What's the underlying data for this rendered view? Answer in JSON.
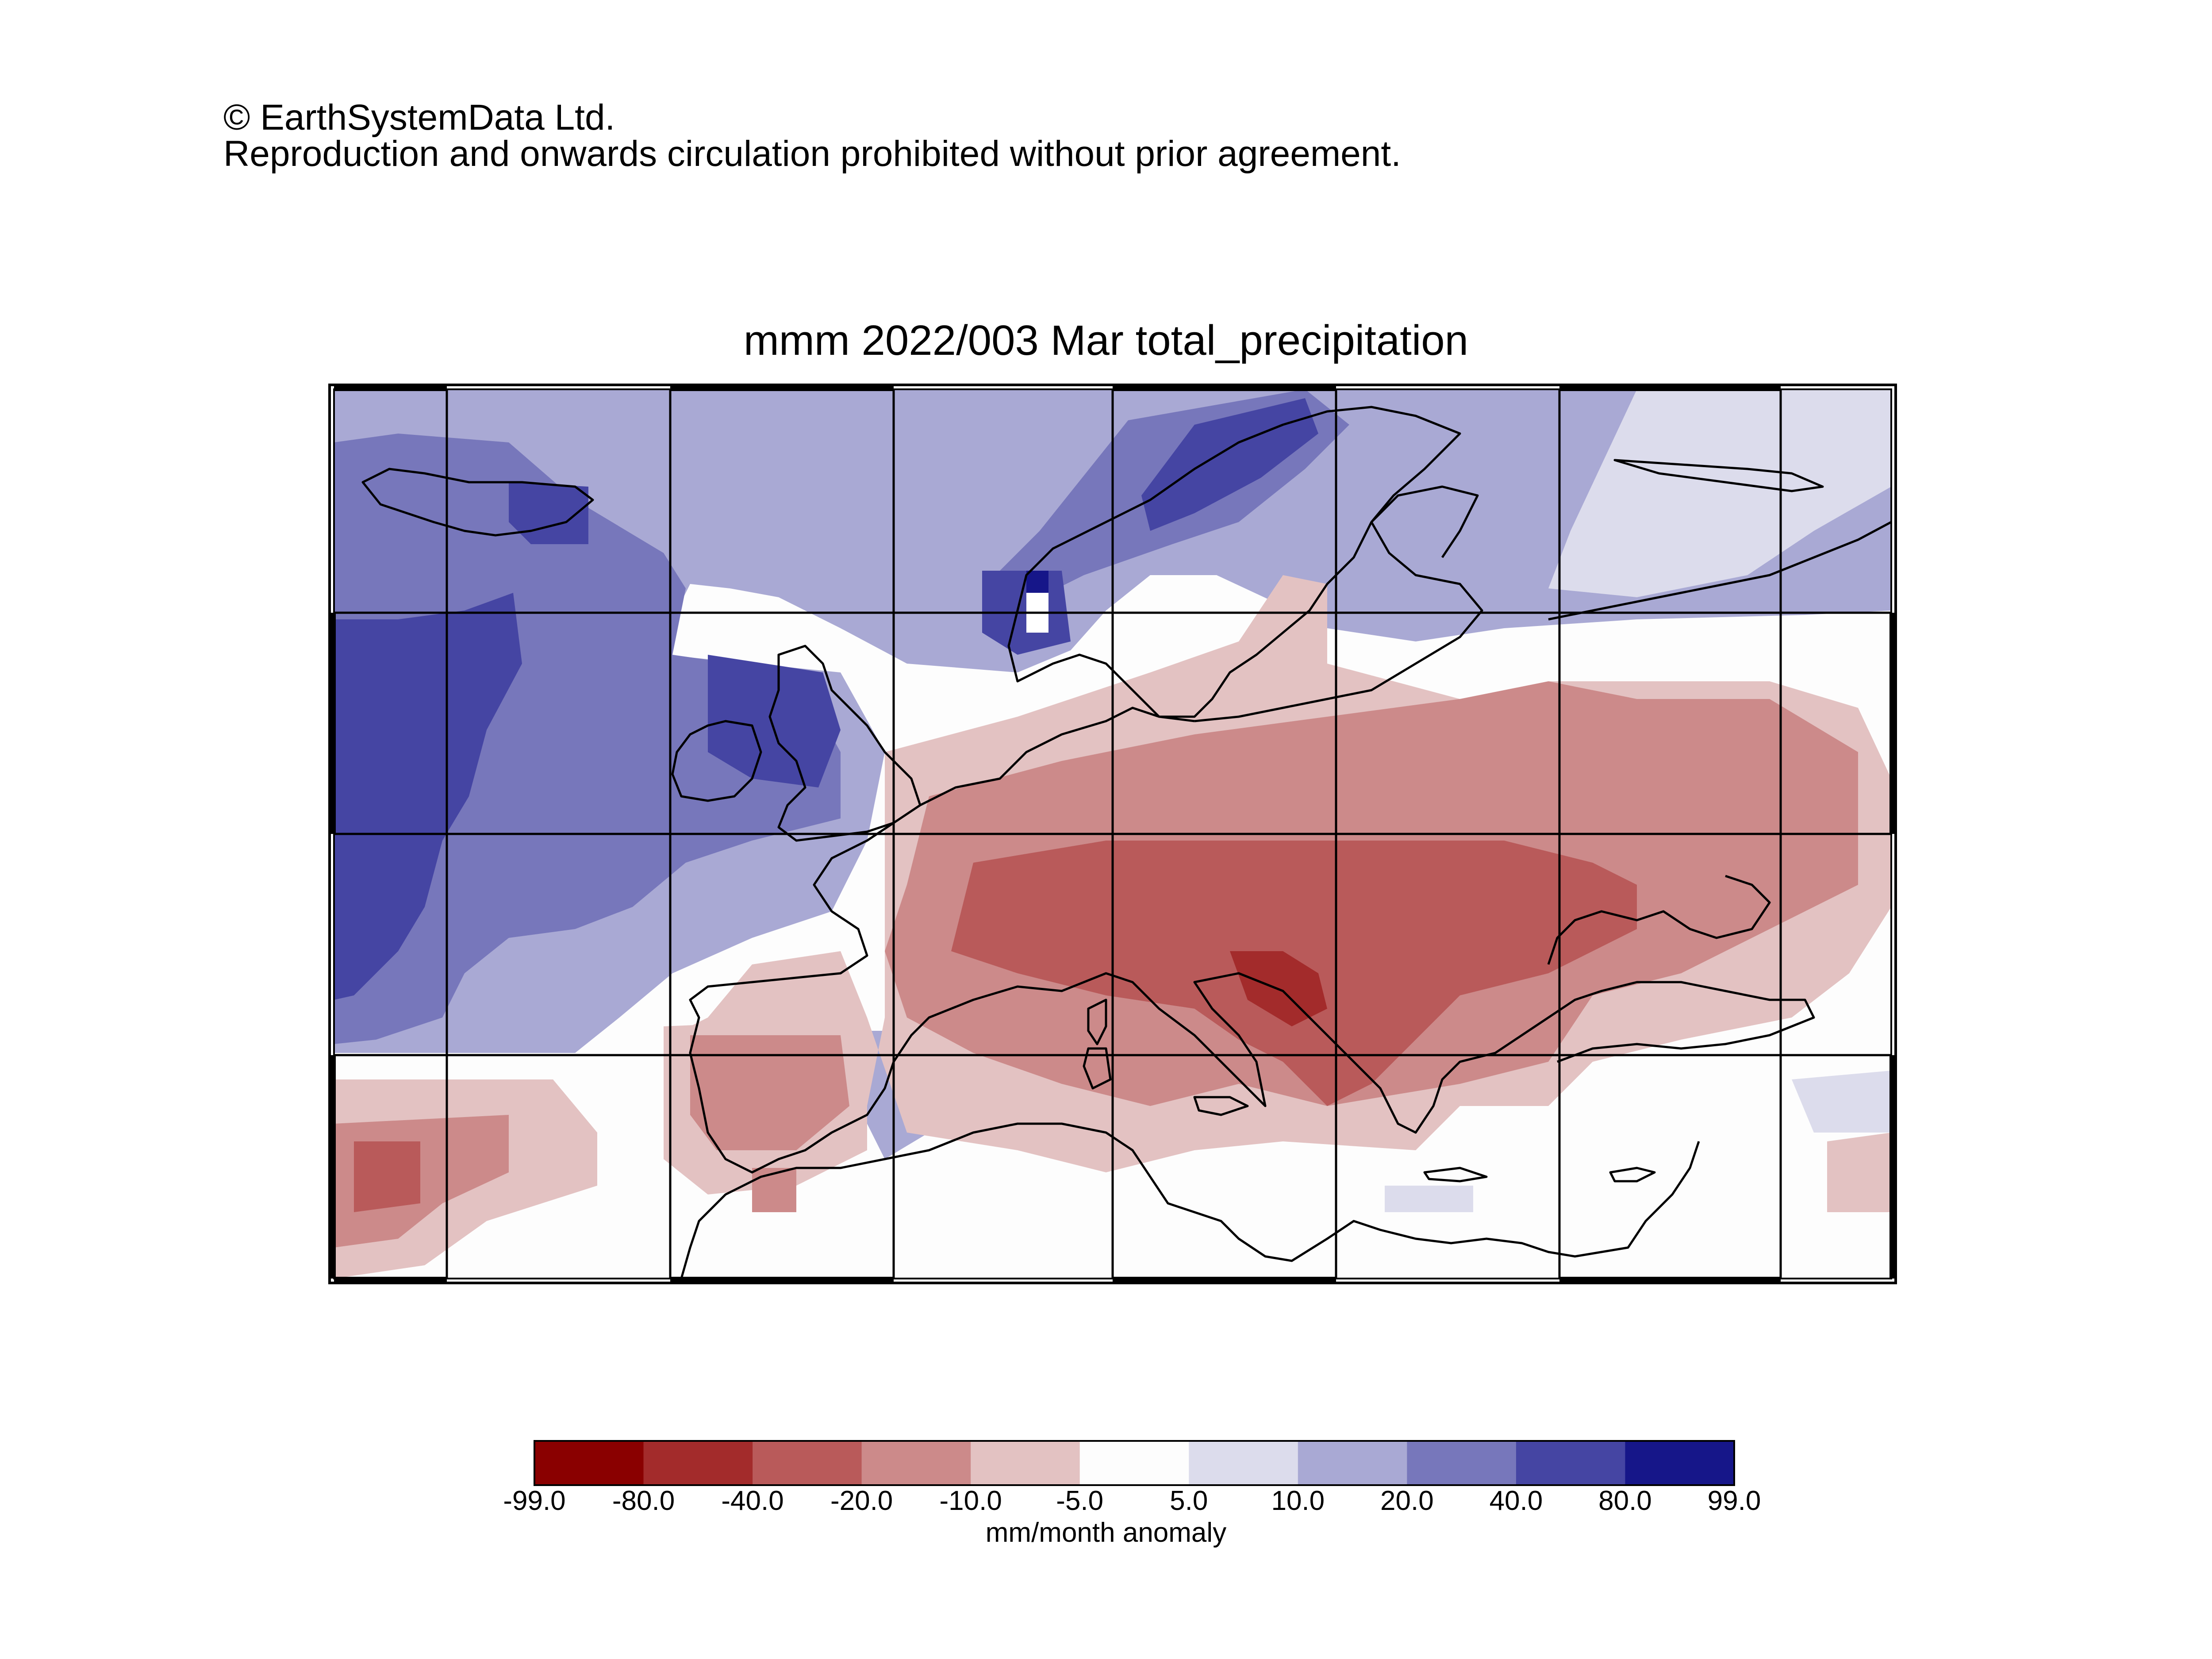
{
  "copyright": {
    "line1": "© EarthSystemData Ltd.",
    "line2": "Reproduction and onwards circulation prohibited without prior agreement."
  },
  "map": {
    "title": "mmm 2022/003 Mar total_precipitation",
    "region": "Europe / North Atlantic / Mediterranean",
    "field": "total_precipitation anomaly",
    "period": "2022 March",
    "grid_lines": true,
    "background_color": "#fdfdfd",
    "anomaly_pattern": [
      {
        "area": "North Atlantic west of Ireland",
        "class": "40.0 to 80.0"
      },
      {
        "area": "Iceland / Norwegian Sea",
        "class": "20.0 to 40.0"
      },
      {
        "area": "Western Norway coast",
        "class": "40.0 to 80.0"
      },
      {
        "area": "Ireland / Western Britain",
        "class": "20.0 to 40.0"
      },
      {
        "area": "Northern Russia / Barents",
        "class": "10.0 to 20.0"
      },
      {
        "area": "Central Europe / Alps / Balkans / Eastern Europe",
        "class": "-40.0 to -20.0"
      },
      {
        "area": "Northern Italy / Adriatic / Hungary",
        "class": "-80.0 to -40.0"
      },
      {
        "area": "Iberia",
        "class": "-20.0 to -10.0"
      },
      {
        "area": "Eastern Atlantic off Morocco",
        "class": "-40.0 to -20.0"
      },
      {
        "area": "Mediterranean south / North Africa",
        "class": "-5.0 to 5.0"
      }
    ]
  },
  "colorbar": {
    "label": "mm/month anomaly",
    "ticks": [
      "-99.0",
      "-80.0",
      "-40.0",
      "-20.0",
      "-10.0",
      "-5.0",
      "5.0",
      "10.0",
      "20.0",
      "40.0",
      "80.0",
      "99.0"
    ],
    "colors": [
      "#8a0000",
      "#a32b2b",
      "#b95a5a",
      "#cc8a8a",
      "#e3c2c2",
      "#fdfdfd",
      "#dcdcec",
      "#a9a9d4",
      "#7777bb",
      "#4545a3",
      "#161689"
    ]
  }
}
